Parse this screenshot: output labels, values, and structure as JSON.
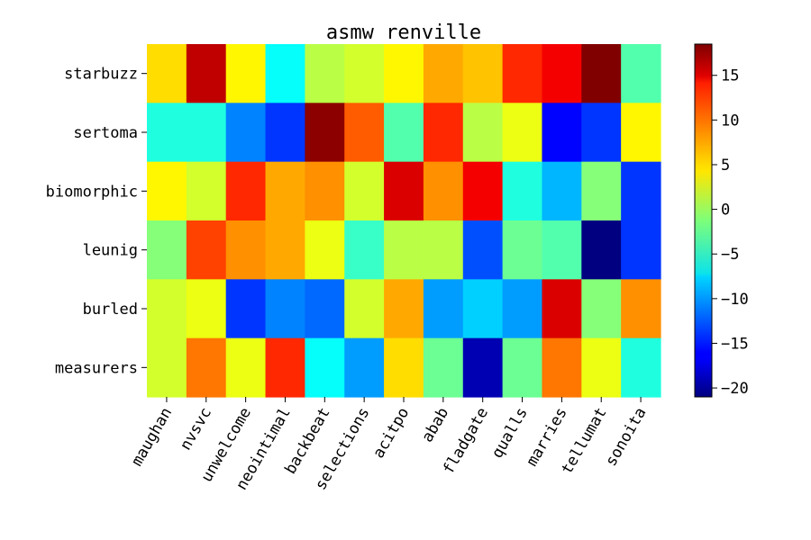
{
  "chart_data": {
    "type": "heatmap",
    "title": "asmw renville",
    "xlabel": "",
    "ylabel": "",
    "x_categories": [
      "maughan",
      "nvsvc",
      "unwelcome",
      "neointimal",
      "backbeat",
      "selections",
      "acitpo",
      "abab",
      "fladgate",
      "qualls",
      "marries",
      "tellumat",
      "sonoita"
    ],
    "y_categories": [
      "starbuzz",
      "sertoma",
      "biomorphic",
      "leunig",
      "burled",
      "measurers"
    ],
    "values": [
      [
        5,
        16,
        4,
        -6,
        1,
        2,
        4,
        7,
        6,
        12,
        14,
        18.5,
        -3
      ],
      [
        -5,
        -5,
        -11,
        -14,
        18,
        10,
        -3,
        12,
        1,
        3,
        -16,
        -14,
        4
      ],
      [
        4,
        2,
        12,
        7,
        8,
        2,
        15,
        8,
        14,
        -5,
        -9,
        -1,
        -14
      ],
      [
        -1,
        11,
        8,
        7,
        3,
        -4,
        1,
        1,
        -13,
        -2,
        -3,
        -21,
        -14
      ],
      [
        2,
        3,
        -14,
        -11,
        -12,
        2,
        7,
        -10,
        -8,
        -10,
        15,
        -1,
        8
      ],
      [
        2,
        9,
        3,
        12,
        -6,
        -10,
        5,
        -2,
        -19,
        -2,
        9,
        3,
        -5
      ]
    ],
    "colormap": "jet",
    "vmin": -21,
    "vmax": 18.5,
    "colorbar_ticks": [
      15,
      10,
      5,
      0,
      -5,
      -10,
      -15,
      -20
    ],
    "colorbar_tick_labels": [
      "15",
      "10",
      "5",
      "0",
      "−5",
      "−10",
      "−15",
      "−20"
    ],
    "grid": false,
    "legend": "none"
  }
}
